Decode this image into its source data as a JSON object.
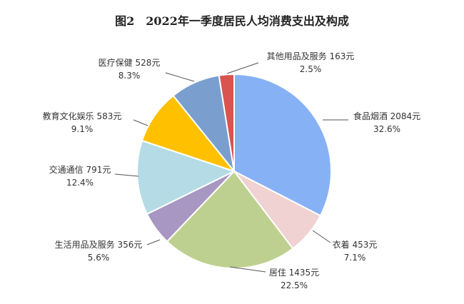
{
  "chart_data": {
    "type": "pie",
    "title": "图2　2022年一季度居民人均消费支出及构成",
    "start_angle": "12 o'clock",
    "direction": "clockwise",
    "slices": [
      {
        "name": "食品烟酒",
        "amount": "2084元",
        "percent": 32.6,
        "percent_label": "32.6%",
        "color": "#86b2f5"
      },
      {
        "name": "衣着",
        "amount": "453元",
        "percent": 7.1,
        "percent_label": "7.1%",
        "color": "#f0d2d2"
      },
      {
        "name": "居住",
        "amount": "1435元",
        "percent": 22.5,
        "percent_label": "22.5%",
        "color": "#bed08f"
      },
      {
        "name": "生活用品及服务",
        "amount": "356元",
        "percent": 5.6,
        "percent_label": "5.6%",
        "color": "#a797c2"
      },
      {
        "name": "交通通信",
        "amount": "791元",
        "percent": 12.4,
        "percent_label": "12.4%",
        "color": "#b5dce6"
      },
      {
        "name": "教育文化娱乐",
        "amount": "583元",
        "percent": 9.1,
        "percent_label": "9.1%",
        "color": "#ffc000"
      },
      {
        "name": "医疗保健",
        "amount": "528元",
        "percent": 8.3,
        "percent_label": "8.3%",
        "color": "#7a9fcf"
      },
      {
        "name": "其他用品及服务",
        "amount": "163元",
        "percent": 2.5,
        "percent_label": "2.5%",
        "color": "#d9534f"
      }
    ]
  }
}
